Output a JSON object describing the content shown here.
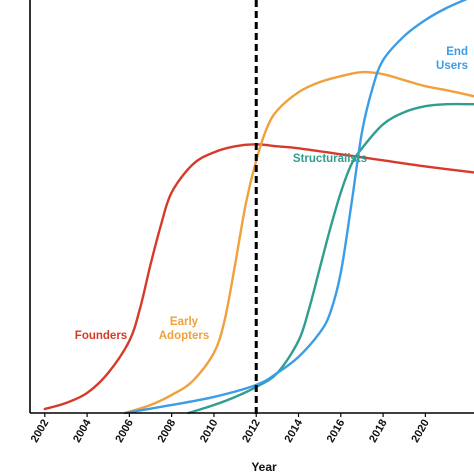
{
  "chart_data": {
    "type": "line",
    "xlabel": "Year",
    "ylabel": "",
    "xlim": [
      2001.3,
      2022.3
    ],
    "ylim": [
      0,
      100
    ],
    "xticks": [
      "2002",
      "2004",
      "2006",
      "2008",
      "2010",
      "2012",
      "2014",
      "2016",
      "2018",
      "2020"
    ],
    "marker_line": {
      "x": 2012
    },
    "grid": false,
    "series": [
      {
        "name": "Founders",
        "label_lines": [
          "Founders"
        ],
        "color": "#d63a2a",
        "x": [
          2002,
          2003,
          2004,
          2005,
          2006,
          2006.5,
          2007,
          2007.5,
          2008,
          2009,
          2010,
          2011,
          2012,
          2013,
          2014,
          2016,
          2018,
          2020,
          2022.3
        ],
        "y": [
          1,
          2.5,
          5,
          10,
          18,
          26,
          37,
          47,
          55,
          62,
          65,
          66.5,
          67,
          66.5,
          66,
          64.5,
          63,
          61.5,
          60
        ]
      },
      {
        "name": "Early Adopters",
        "label_lines": [
          "Early",
          "Adopters"
        ],
        "color": "#f0a03c",
        "x": [
          2005.8,
          2007,
          2008,
          2009,
          2010,
          2010.5,
          2011,
          2011.5,
          2012,
          2012.5,
          2013,
          2014,
          2015,
          2016,
          2017,
          2018,
          2019,
          2020,
          2021,
          2022.3
        ],
        "y": [
          0,
          2,
          4.5,
          8,
          15,
          23,
          37,
          52,
          63,
          71,
          75.5,
          80,
          82.5,
          84,
          85,
          84.5,
          83,
          81.5,
          80.5,
          79
        ]
      },
      {
        "name": "Structuralists",
        "label_lines": [
          "Structuralists"
        ],
        "color": "#2f9e8e",
        "x": [
          2008.8,
          2010,
          2011,
          2012,
          2013,
          2014,
          2014.5,
          2015,
          2015.5,
          2016,
          2016.5,
          2017,
          2018,
          2019,
          2020,
          2021,
          2022.3
        ],
        "y": [
          0,
          2,
          4,
          6.5,
          10,
          18,
          26,
          36,
          46,
          55,
          62,
          66,
          72,
          75,
          76.5,
          77,
          77
        ]
      },
      {
        "name": "End Users",
        "label_lines": [
          "End",
          "Users"
        ],
        "color": "#3b9de6",
        "x": [
          2005.8,
          2008,
          2010,
          2012,
          2013,
          2014,
          2015,
          2015.5,
          2016,
          2016.5,
          2017,
          2017.5,
          2018,
          2019,
          2020,
          2021,
          2022.3
        ],
        "y": [
          0,
          2,
          4,
          7,
          10,
          14,
          20,
          25,
          35,
          52,
          70,
          81,
          88,
          94,
          98,
          101,
          104
        ]
      }
    ]
  }
}
